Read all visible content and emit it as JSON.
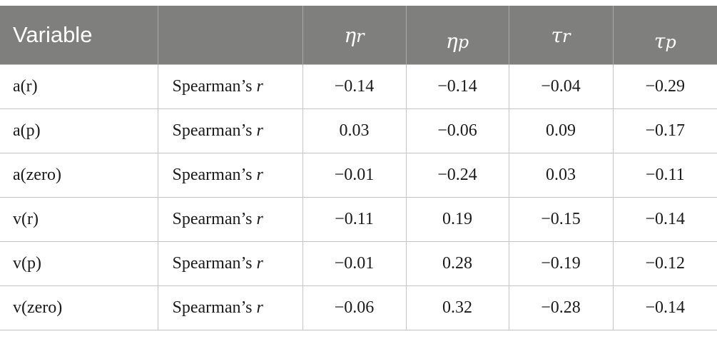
{
  "table": {
    "headers": {
      "variable": "Variable",
      "blank": "",
      "eta_r": {
        "symbol": "η",
        "sub": "r"
      },
      "eta_p": {
        "symbol": "η",
        "sub": "p"
      },
      "tau_r": {
        "symbol": "τ",
        "sub": "r"
      },
      "tau_p": {
        "symbol": "τ",
        "sub": "p"
      }
    },
    "rows": [
      {
        "variable": "a(r)",
        "stat": "Spearman’s",
        "stat_sym": "r",
        "values": [
          "−0.14",
          "−0.14",
          "−0.04",
          "−0.29"
        ]
      },
      {
        "variable": "a(p)",
        "stat": "Spearman’s",
        "stat_sym": "r",
        "values": [
          "0.03",
          "−0.06",
          "0.09",
          "−0.17"
        ]
      },
      {
        "variable": "a(zero)",
        "stat": "Spearman’s",
        "stat_sym": "r",
        "values": [
          "−0.01",
          "−0.24",
          "0.03",
          "−0.11"
        ]
      },
      {
        "variable": "v(r)",
        "stat": "Spearman’s",
        "stat_sym": "r",
        "values": [
          "−0.11",
          "0.19",
          "−0.15",
          "−0.14"
        ]
      },
      {
        "variable": "v(p)",
        "stat": "Spearman’s",
        "stat_sym": "r",
        "values": [
          "−0.01",
          "0.28",
          "−0.19",
          "−0.12"
        ]
      },
      {
        "variable": "v(zero)",
        "stat": "Spearman’s",
        "stat_sym": "r",
        "values": [
          "−0.06",
          "0.32",
          "−0.28",
          "−0.14"
        ]
      }
    ]
  },
  "colors": {
    "header_bg": "#7f7f7e",
    "header_text": "#ffffff",
    "grid": "#c4c4c4"
  }
}
